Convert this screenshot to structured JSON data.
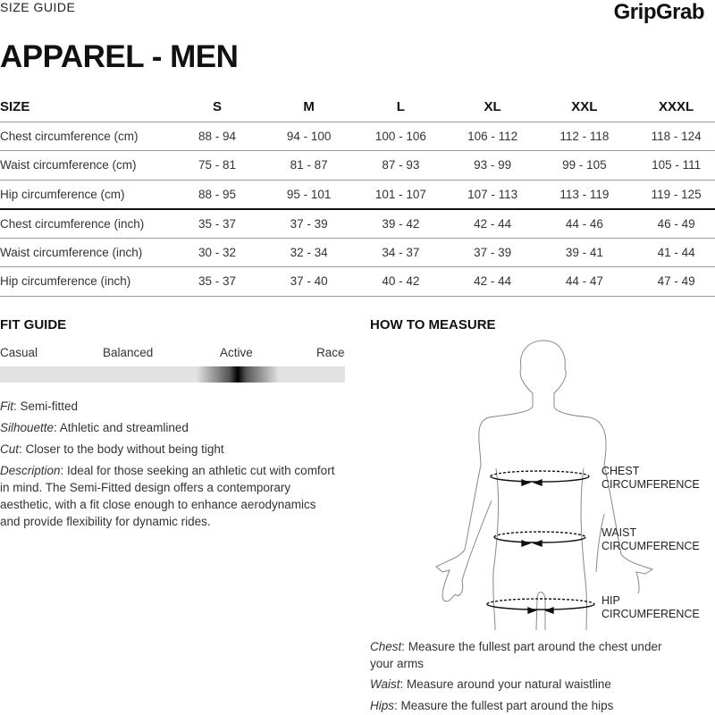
{
  "header": {
    "section": "SIZE GUIDE",
    "brand": "GripGrab",
    "title": "APPAREL - MEN"
  },
  "table": {
    "headers": [
      "SIZE",
      "S",
      "M",
      "L",
      "XL",
      "XXL",
      "XXXL"
    ],
    "rows": [
      [
        "Chest circumference (cm)",
        "88 - 94",
        "94 - 100",
        "100 - 106",
        "106 - 112",
        "112 - 118",
        "118 - 124"
      ],
      [
        "Waist circumference (cm)",
        "75 - 81",
        "81 - 87",
        "87 - 93",
        "93 - 99",
        "99 - 105",
        "105 - 111"
      ],
      [
        "Hip circumference (cm)",
        "88 - 95",
        "95 - 101",
        "101 - 107",
        "107 - 113",
        "113 - 119",
        "119 - 125"
      ],
      [
        "Chest circumference (inch)",
        "35 - 37",
        "37 - 39",
        "39 - 42",
        "42 - 44",
        "44 - 46",
        "46 - 49"
      ],
      [
        "Waist circumference (inch)",
        "30 - 32",
        "32 - 34",
        "34 - 37",
        "37 - 39",
        "39 - 41",
        "41 - 44"
      ],
      [
        "Hip circumference (inch)",
        "35 - 37",
        "37 - 40",
        "40 - 42",
        "42 - 44",
        "44 - 47",
        "47 - 49"
      ]
    ]
  },
  "fit_guide": {
    "title": "FIT GUIDE",
    "scale": [
      "Casual",
      "Balanced",
      "Active",
      "Race"
    ],
    "level_fraction": 0.69,
    "fit_label": "Fit",
    "fit": ": Semi-fitted",
    "silhouette_label": "Silhouette",
    "silhouette": ": Athletic and streamlined",
    "cut_label": "Cut",
    "cut": ": Closer to the body without being tight",
    "description_label": "Description",
    "description": ": Ideal for those seeking an athletic cut with comfort in mind. The Semi-Fitted design offers a contemporary aesthetic, with a fit close enough to enhance aerodynamics and provide flexibility for dynamic rides."
  },
  "how_to_measure": {
    "title": "HOW TO MEASURE",
    "labels": {
      "chest1": "CHEST",
      "chest2": "CIRCUMFERENCE",
      "waist1": "WAIST",
      "waist2": "CIRCUMFERENCE",
      "hip1": "HIP",
      "hip2": "CIRCUMFERENCE"
    },
    "chest_label": "Chest",
    "chest": ": Measure the fullest part around the chest under your arms",
    "waist_label": "Waist",
    "waist": ": Measure around your natural waistline",
    "hips_label": "Hips",
    "hips": ": Measure the fullest part around the hips"
  }
}
